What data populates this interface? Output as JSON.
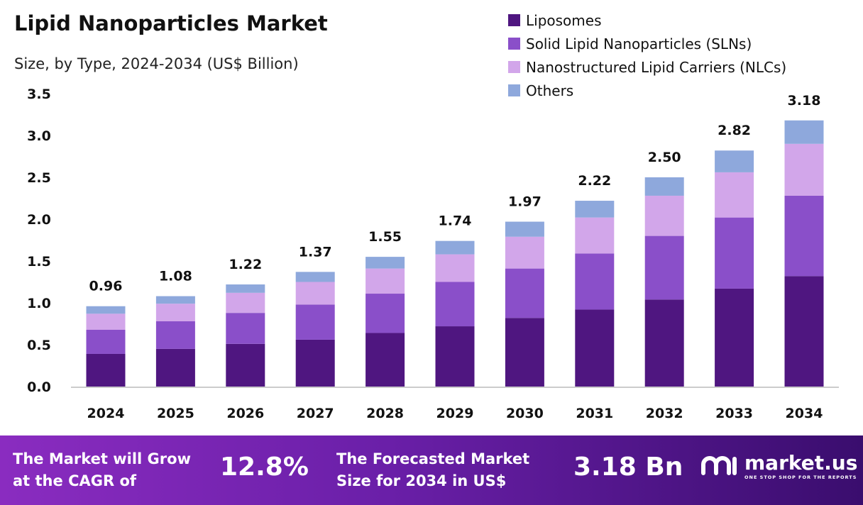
{
  "chart_data": {
    "type": "bar",
    "stacked": true,
    "title": "Lipid Nanoparticles Market",
    "subtitle": "Size, by Type, 2024-2034 (US$ Billion)",
    "categories": [
      "2024",
      "2025",
      "2026",
      "2027",
      "2028",
      "2029",
      "2030",
      "2031",
      "2032",
      "2033",
      "2034"
    ],
    "series": [
      {
        "name": "Liposomes",
        "color": "#4f1680",
        "values": [
          0.39,
          0.45,
          0.51,
          0.56,
          0.64,
          0.72,
          0.82,
          0.92,
          1.04,
          1.17,
          1.32
        ]
      },
      {
        "name": "Solid Lipid Nanoparticles (SLNs)",
        "color": "#8a4fc9",
        "values": [
          0.29,
          0.33,
          0.37,
          0.42,
          0.47,
          0.53,
          0.59,
          0.67,
          0.76,
          0.85,
          0.96
        ]
      },
      {
        "name": "Nanostructured Lipid Carriers (NLCs)",
        "color": "#d2a6ea",
        "values": [
          0.19,
          0.21,
          0.24,
          0.27,
          0.3,
          0.33,
          0.38,
          0.43,
          0.48,
          0.54,
          0.62
        ]
      },
      {
        "name": "Others",
        "color": "#8ea8dc",
        "values": [
          0.09,
          0.09,
          0.1,
          0.12,
          0.14,
          0.16,
          0.18,
          0.2,
          0.22,
          0.26,
          0.28
        ]
      }
    ],
    "totals": [
      "0.96",
      "1.08",
      "1.22",
      "1.37",
      "1.55",
      "1.74",
      "1.97",
      "2.22",
      "2.50",
      "2.82",
      "3.18"
    ],
    "yticks": [
      "0.0",
      "0.5",
      "1.0",
      "1.5",
      "2.0",
      "2.5",
      "3.0",
      "3.5"
    ],
    "ylim": [
      0,
      3.5
    ],
    "grid": false,
    "legend_position": "top-right"
  },
  "footer": {
    "cagr_text_1": "The Market will Grow",
    "cagr_text_2": "at the CAGR of",
    "cagr_value": "12.8%",
    "forecast_text_1": "The Forecasted Market",
    "forecast_text_2": "Size for 2034 in US$",
    "forecast_value": "3.18 Bn",
    "logo_name": "market.us",
    "logo_tagline": "ONE STOP SHOP FOR THE REPORTS"
  }
}
